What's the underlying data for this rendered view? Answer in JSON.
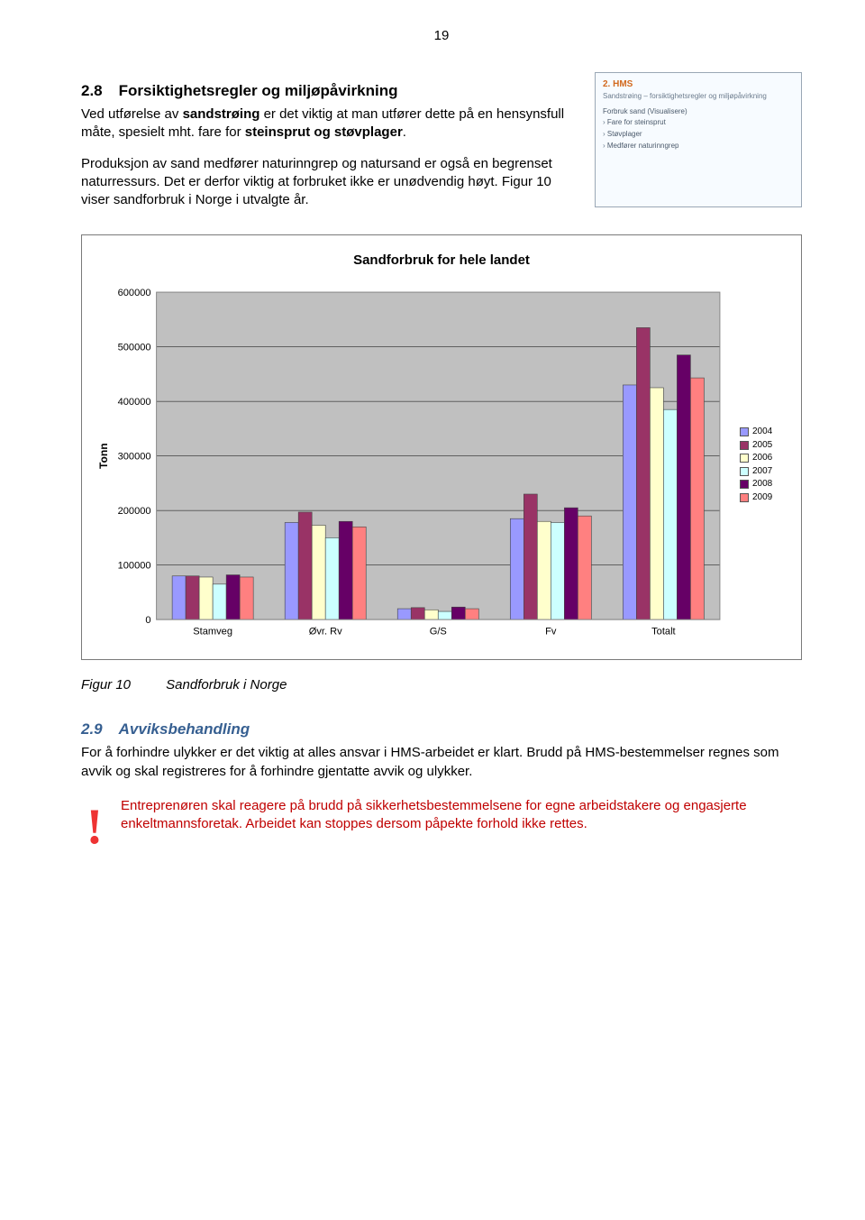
{
  "page_number": "19",
  "section28": {
    "num": "2.8",
    "title": "Forsiktighetsregler og miljøpåvirkning",
    "para1_a": "Ved utførelse av ",
    "para1_b": "sandstrøing",
    "para1_c": " er det viktig at man utfører dette på en hensynsfull måte, spesielt mht. fare for ",
    "para1_d": "steinsprut og støvplager",
    "para1_e": ".",
    "para2": "Produksjon av sand medfører naturinngrep og natursand er også en begrenset naturressurs. Det er derfor viktig at forbruket ikke er unødvendig høyt. Figur 10 viser sandforbruk i Norge i utvalgte år."
  },
  "thumb": {
    "title": "2. HMS",
    "sub": "Sandstrøing – forsiktighetsregler og miljøpåvirkning",
    "l0": "Forbruk sand (Visualisere)",
    "l1": "Fare for steinsprut",
    "l2": "Støvplager",
    "l3": "Medfører naturinngrep"
  },
  "chart": {
    "title": "Sandforbruk for hele landet",
    "ylabel": "Tonn",
    "categories": [
      "Stamveg",
      "Øvr. Rv",
      "G/S",
      "Fv",
      "Totalt"
    ],
    "series": [
      "2004",
      "2005",
      "2006",
      "2007",
      "2008",
      "2009"
    ],
    "colors": [
      "#9999ff",
      "#993366",
      "#ffffcc",
      "#ccffff",
      "#660066",
      "#ff8080"
    ],
    "values": [
      [
        80000,
        80000,
        78000,
        65000,
        82000,
        78000
      ],
      [
        178000,
        197000,
        173000,
        150000,
        180000,
        170000
      ],
      [
        20000,
        22000,
        18000,
        15000,
        23000,
        20000
      ],
      [
        185000,
        230000,
        180000,
        178000,
        205000,
        190000
      ],
      [
        430000,
        535000,
        425000,
        385000,
        485000,
        443000
      ]
    ],
    "ymax": 600000,
    "ytick": 100000,
    "yticks": [
      "0",
      "100000",
      "200000",
      "300000",
      "400000",
      "500000",
      "600000"
    ],
    "plot_bg": "#c0c0c0",
    "grid_color": "#000000"
  },
  "fig_caption": {
    "num": "Figur 10",
    "text": "Sandforbruk i Norge"
  },
  "section29": {
    "num": "2.9",
    "title": "Avviksbehandling",
    "para": "For å forhindre ulykker er det viktig at alles ansvar i HMS-arbeidet er klart. Brudd på HMS-bestemmelser regnes som avvik og skal registreres for å forhindre gjentatte avvik og ulykker."
  },
  "warning": {
    "text": "Entreprenøren skal reagere på brudd på sikkerhetsbestemmelsene for egne arbeidstakere og engasjerte enkeltmannsforetak. Arbeidet kan stoppes dersom påpekte forhold ikke rettes."
  }
}
